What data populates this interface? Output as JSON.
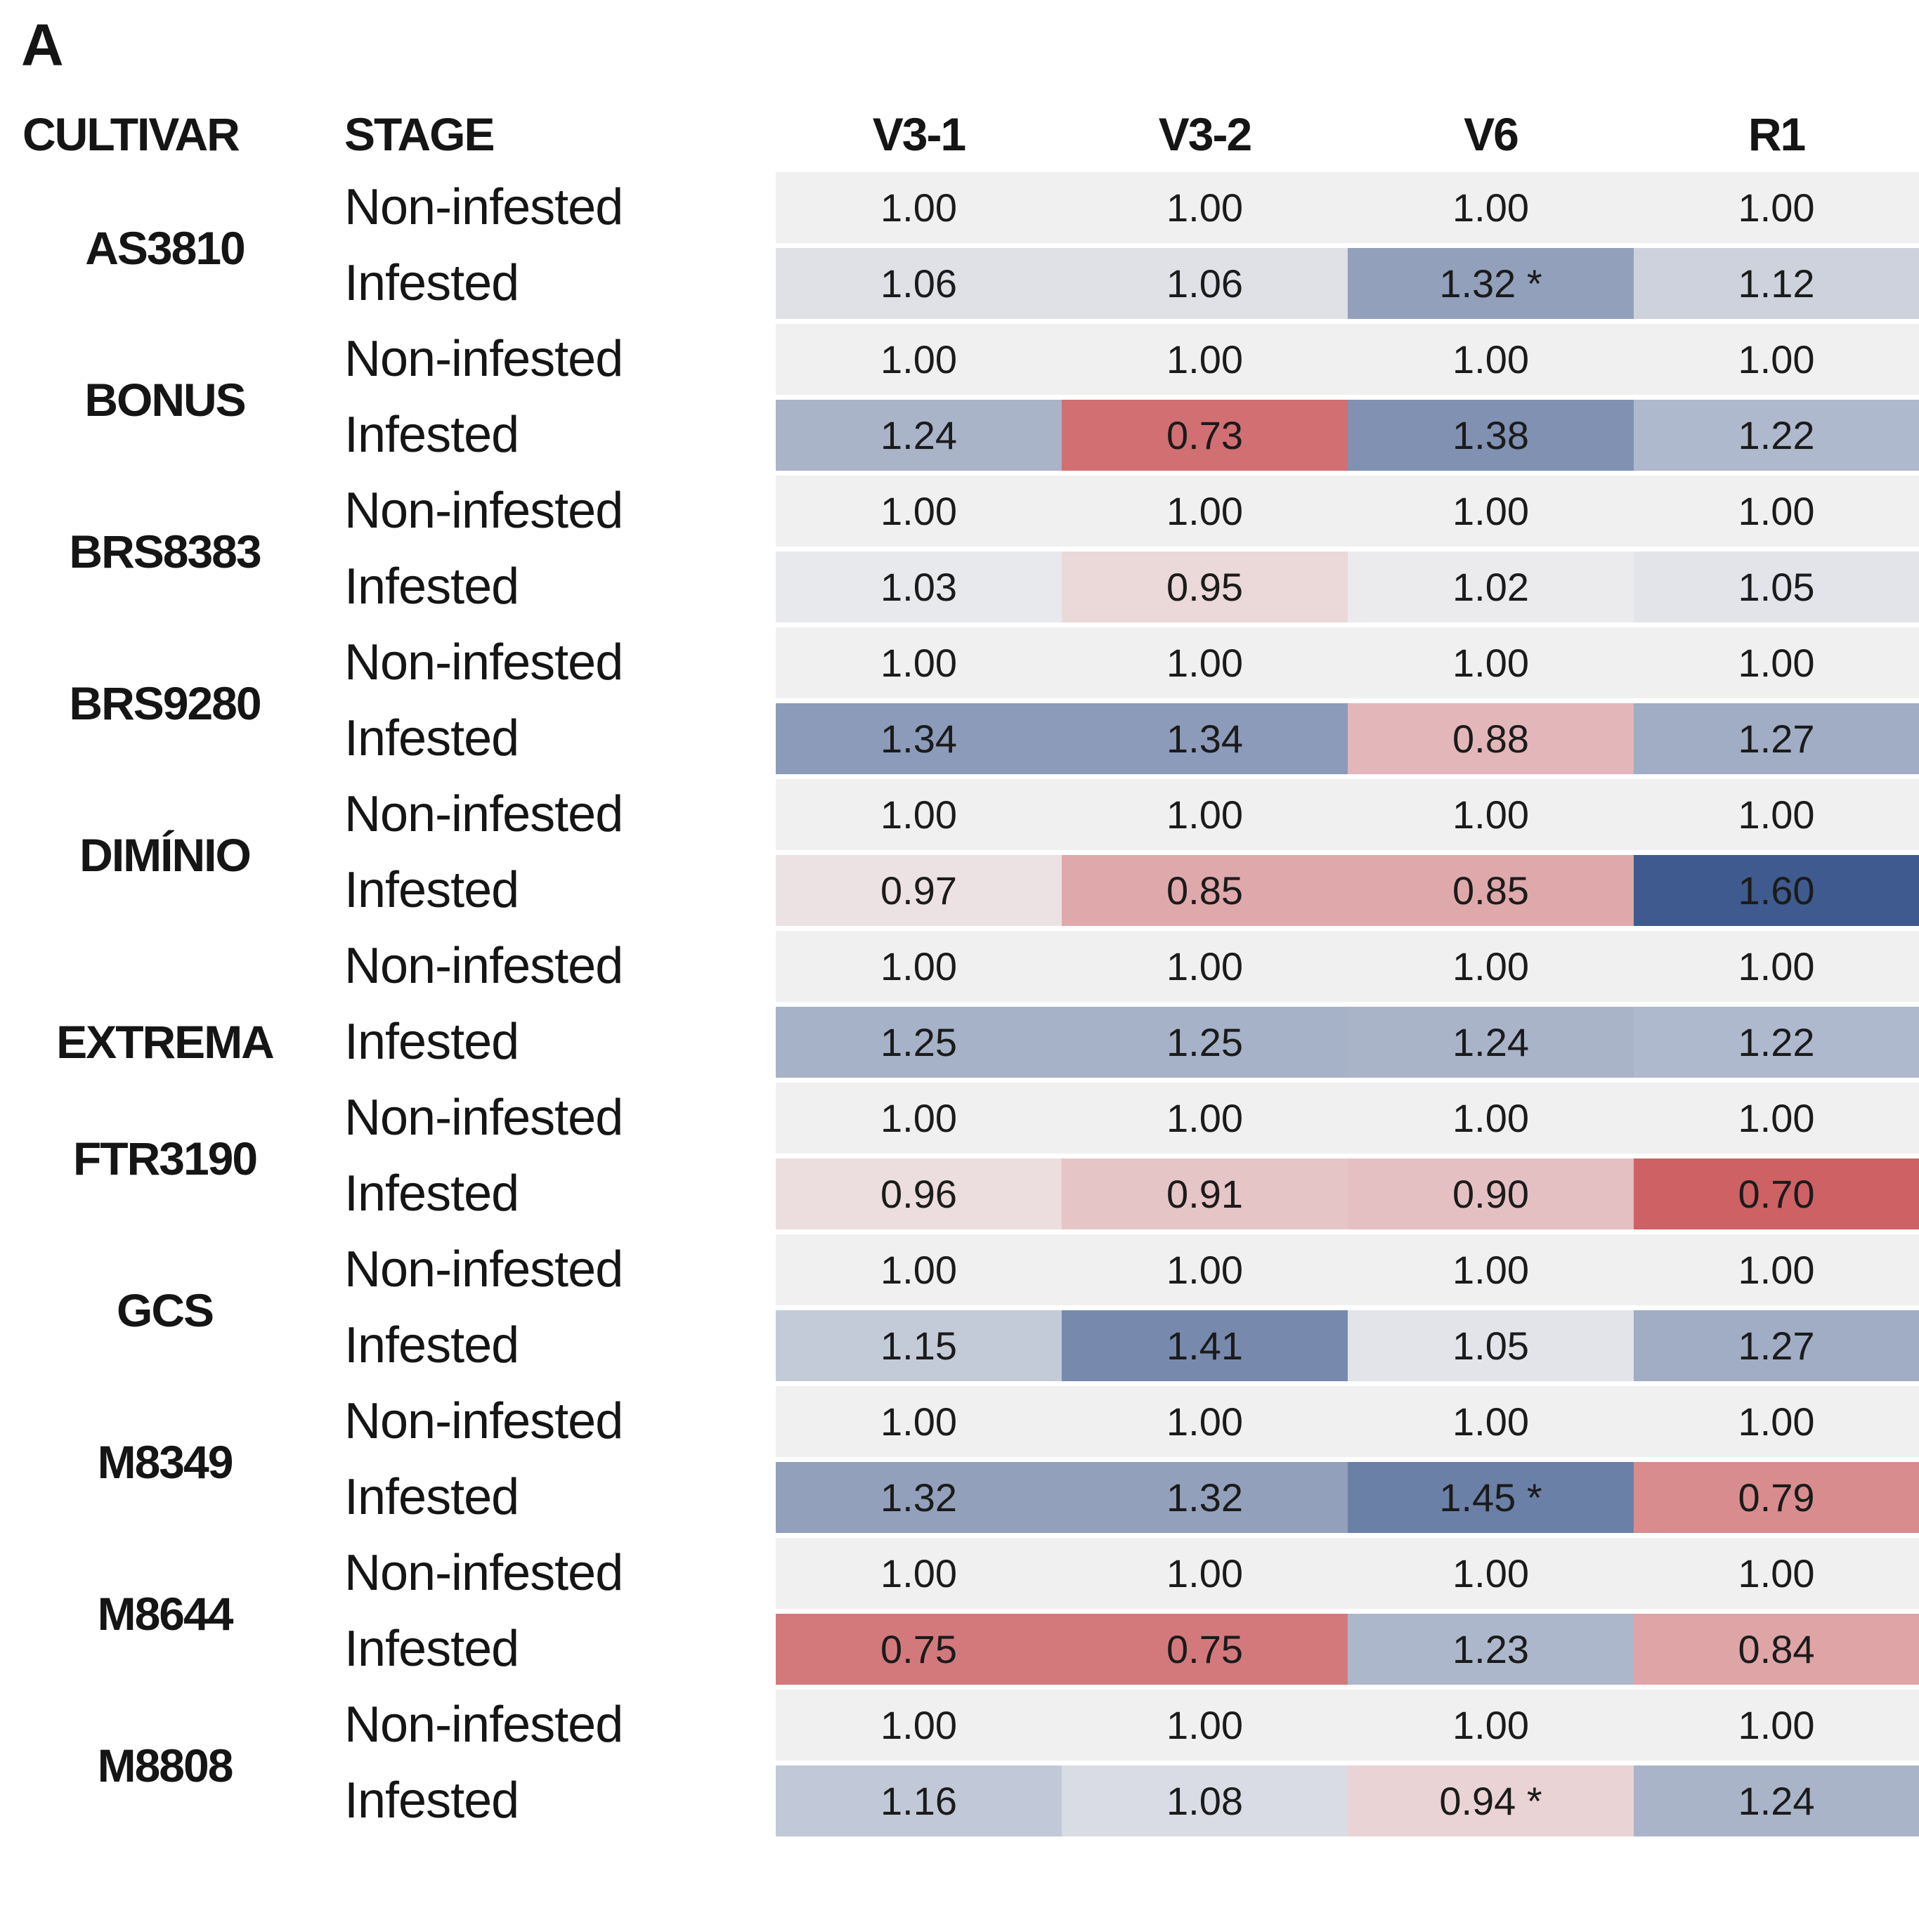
{
  "chart_data": {
    "type": "heatmap",
    "panel_label": "A",
    "row_header_labels": [
      "CULTIVAR",
      "STAGE"
    ],
    "columns": [
      "V3-1",
      "V3-2",
      "V6",
      "R1"
    ],
    "significance_marker": "*",
    "color_scale": {
      "description": "diverging red-neutral-blue scale centered at 1.00",
      "domain": [
        0.7,
        1.0,
        1.6
      ],
      "colors": [
        "#cd6164",
        "#f1f0f1",
        "#3e5a8e"
      ]
    },
    "text_color": "#1b1b1b",
    "background": "#ffffff",
    "cultivars": [
      {
        "name": "AS3810",
        "rows": [
          {
            "stage": "Non-infested",
            "values": [
              1.0,
              1.0,
              1.0,
              1.0
            ],
            "sig": [
              false,
              false,
              false,
              false
            ]
          },
          {
            "stage": "Infested",
            "values": [
              1.06,
              1.06,
              1.32,
              1.12
            ],
            "sig": [
              false,
              false,
              true,
              false
            ]
          }
        ]
      },
      {
        "name": "BONUS",
        "rows": [
          {
            "stage": "Non-infested",
            "values": [
              1.0,
              1.0,
              1.0,
              1.0
            ],
            "sig": [
              false,
              false,
              false,
              false
            ]
          },
          {
            "stage": "Infested",
            "values": [
              1.24,
              0.73,
              1.38,
              1.22
            ],
            "sig": [
              false,
              false,
              false,
              false
            ]
          }
        ]
      },
      {
        "name": "BRS8383",
        "rows": [
          {
            "stage": "Non-infested",
            "values": [
              1.0,
              1.0,
              1.0,
              1.0
            ],
            "sig": [
              false,
              false,
              false,
              false
            ]
          },
          {
            "stage": "Infested",
            "values": [
              1.03,
              0.95,
              1.02,
              1.05
            ],
            "sig": [
              false,
              false,
              false,
              false
            ]
          }
        ]
      },
      {
        "name": "BRS9280",
        "rows": [
          {
            "stage": "Non-infested",
            "values": [
              1.0,
              1.0,
              1.0,
              1.0
            ],
            "sig": [
              false,
              false,
              false,
              false
            ]
          },
          {
            "stage": "Infested",
            "values": [
              1.34,
              1.34,
              0.88,
              1.27
            ],
            "sig": [
              false,
              false,
              false,
              false
            ]
          }
        ]
      },
      {
        "name": "DIMÍNIO",
        "rows": [
          {
            "stage": "Non-infested",
            "values": [
              1.0,
              1.0,
              1.0,
              1.0
            ],
            "sig": [
              false,
              false,
              false,
              false
            ]
          },
          {
            "stage": "Infested",
            "values": [
              0.97,
              0.85,
              0.85,
              1.6
            ],
            "sig": [
              false,
              false,
              false,
              false
            ]
          }
        ]
      },
      {
        "name": "EXTREMA",
        "label_align": "second-row",
        "rows": [
          {
            "stage": "Non-infested",
            "values": [
              1.0,
              1.0,
              1.0,
              1.0
            ],
            "sig": [
              false,
              false,
              false,
              false
            ]
          },
          {
            "stage": "Infested",
            "values": [
              1.25,
              1.25,
              1.24,
              1.22
            ],
            "sig": [
              false,
              false,
              false,
              false
            ]
          }
        ]
      },
      {
        "name": "FTR3190",
        "rows": [
          {
            "stage": "Non-infested",
            "values": [
              1.0,
              1.0,
              1.0,
              1.0
            ],
            "sig": [
              false,
              false,
              false,
              false
            ]
          },
          {
            "stage": "Infested",
            "values": [
              0.96,
              0.91,
              0.9,
              0.7
            ],
            "sig": [
              false,
              false,
              false,
              false
            ]
          }
        ]
      },
      {
        "name": "GCS",
        "rows": [
          {
            "stage": "Non-infested",
            "values": [
              1.0,
              1.0,
              1.0,
              1.0
            ],
            "sig": [
              false,
              false,
              false,
              false
            ]
          },
          {
            "stage": "Infested",
            "values": [
              1.15,
              1.41,
              1.05,
              1.27
            ],
            "sig": [
              false,
              false,
              false,
              false
            ]
          }
        ]
      },
      {
        "name": "M8349",
        "rows": [
          {
            "stage": "Non-infested",
            "values": [
              1.0,
              1.0,
              1.0,
              1.0
            ],
            "sig": [
              false,
              false,
              false,
              false
            ]
          },
          {
            "stage": "Infested",
            "values": [
              1.32,
              1.32,
              1.45,
              0.79
            ],
            "sig": [
              false,
              false,
              true,
              false
            ]
          }
        ]
      },
      {
        "name": "M8644",
        "rows": [
          {
            "stage": "Non-infested",
            "values": [
              1.0,
              1.0,
              1.0,
              1.0
            ],
            "sig": [
              false,
              false,
              false,
              false
            ]
          },
          {
            "stage": "Infested",
            "values": [
              0.75,
              0.75,
              1.23,
              0.84
            ],
            "sig": [
              false,
              false,
              false,
              false
            ]
          }
        ]
      },
      {
        "name": "M8808",
        "rows": [
          {
            "stage": "Non-infested",
            "values": [
              1.0,
              1.0,
              1.0,
              1.0
            ],
            "sig": [
              false,
              false,
              false,
              false
            ]
          },
          {
            "stage": "Infested",
            "values": [
              1.16,
              1.08,
              0.94,
              1.24
            ],
            "sig": [
              false,
              false,
              true,
              false
            ]
          }
        ]
      }
    ]
  }
}
